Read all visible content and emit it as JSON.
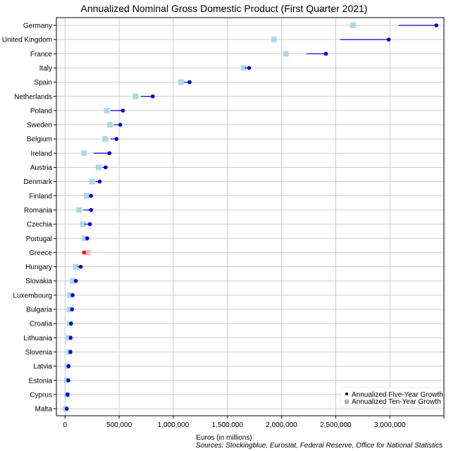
{
  "chart_data": {
    "type": "dot-range",
    "title": "Annualized Nominal Gross Domestic Product (First Quarter 2021)",
    "xlabel": "Euros (in millions)",
    "source": "Sources: Stockingblue, Eurostat, Federal Reserve, Office for National Statistics",
    "xlim": [
      -80000,
      3500000
    ],
    "xticks": [
      0,
      500000,
      1000000,
      1500000,
      2000000,
      2500000,
      3000000
    ],
    "xtick_labels": [
      "0",
      "500,000",
      "1,000,000",
      "1,500,000",
      "2,000,000",
      "2,500,000",
      "3,000,000"
    ],
    "grid": true,
    "legend_position": "bottom-right",
    "legend": [
      {
        "label": "Annualized Five-Year Growth"
      },
      {
        "label": "Annualized Ten-Year Growth"
      }
    ],
    "colors": {
      "five_year": "#0000cd",
      "ten_year": "#add8e6",
      "negative_five_year": "#ff0000",
      "negative_ten_year": "#ffb6c1",
      "grid": "#cccccc"
    },
    "rows": [
      {
        "country": "Germany",
        "current": 3430000,
        "five_year_start": 3080000,
        "ten_year": 2660000,
        "negative": false
      },
      {
        "country": "United Kingdom",
        "current": 2990000,
        "five_year_start": 2540000,
        "ten_year": 1930000,
        "negative": false
      },
      {
        "country": "France",
        "current": 2410000,
        "five_year_start": 2230000,
        "ten_year": 2040000,
        "negative": false
      },
      {
        "country": "Italy",
        "current": 1700000,
        "five_year_start": 1660000,
        "ten_year": 1650000,
        "negative": false
      },
      {
        "country": "Spain",
        "current": 1150000,
        "five_year_start": 1100000,
        "ten_year": 1070000,
        "negative": false
      },
      {
        "country": "Netherlands",
        "current": 810000,
        "five_year_start": 700000,
        "ten_year": 650000,
        "negative": false
      },
      {
        "country": "Poland",
        "current": 535000,
        "five_year_start": 420000,
        "ten_year": 385000,
        "negative": false
      },
      {
        "country": "Sweden",
        "current": 510000,
        "five_year_start": 450000,
        "ten_year": 415000,
        "negative": false
      },
      {
        "country": "Belgium",
        "current": 475000,
        "five_year_start": 420000,
        "ten_year": 370000,
        "negative": false
      },
      {
        "country": "Ireland",
        "current": 410000,
        "five_year_start": 265000,
        "ten_year": 175000,
        "negative": false
      },
      {
        "country": "Austria",
        "current": 375000,
        "five_year_start": 345000,
        "ten_year": 310000,
        "negative": false
      },
      {
        "country": "Denmark",
        "current": 320000,
        "five_year_start": 280000,
        "ten_year": 250000,
        "negative": false
      },
      {
        "country": "Finland",
        "current": 240000,
        "five_year_start": 220000,
        "ten_year": 200000,
        "negative": false
      },
      {
        "country": "Romania",
        "current": 240000,
        "five_year_start": 170000,
        "ten_year": 130000,
        "negative": false
      },
      {
        "country": "Czechia",
        "current": 230000,
        "five_year_start": 180000,
        "ten_year": 165000,
        "negative": false
      },
      {
        "country": "Portugal",
        "current": 205000,
        "five_year_start": 185000,
        "ten_year": 180000,
        "negative": false
      },
      {
        "country": "Greece",
        "current": 175000,
        "five_year_start": 180000,
        "ten_year": 210000,
        "negative": true
      },
      {
        "country": "Hungary",
        "current": 145000,
        "five_year_start": 115000,
        "ten_year": 100000,
        "negative": false
      },
      {
        "country": "Slovakia",
        "current": 100000,
        "five_year_start": 80000,
        "ten_year": 70000,
        "negative": false
      },
      {
        "country": "Luxembourg",
        "current": 70000,
        "five_year_start": 55000,
        "ten_year": 45000,
        "negative": false
      },
      {
        "country": "Bulgaria",
        "current": 65000,
        "five_year_start": 50000,
        "ten_year": 40000,
        "negative": false
      },
      {
        "country": "Croatia",
        "current": 55000,
        "five_year_start": 47000,
        "ten_year": 45000,
        "negative": false
      },
      {
        "country": "Lithuania",
        "current": 52000,
        "five_year_start": 39000,
        "ten_year": 32000,
        "negative": false
      },
      {
        "country": "Slovenia",
        "current": 50000,
        "five_year_start": 41000,
        "ten_year": 37000,
        "negative": false
      },
      {
        "country": "Latvia",
        "current": 32000,
        "five_year_start": 26000,
        "ten_year": 21000,
        "negative": false
      },
      {
        "country": "Estonia",
        "current": 30000,
        "five_year_start": 21000,
        "ten_year": 17000,
        "negative": false
      },
      {
        "country": "Cyprus",
        "current": 23000,
        "five_year_start": 19000,
        "ten_year": 19000,
        "negative": false
      },
      {
        "country": "Malta",
        "current": 15000,
        "five_year_start": 10000,
        "ten_year": 7000,
        "negative": false
      }
    ]
  }
}
